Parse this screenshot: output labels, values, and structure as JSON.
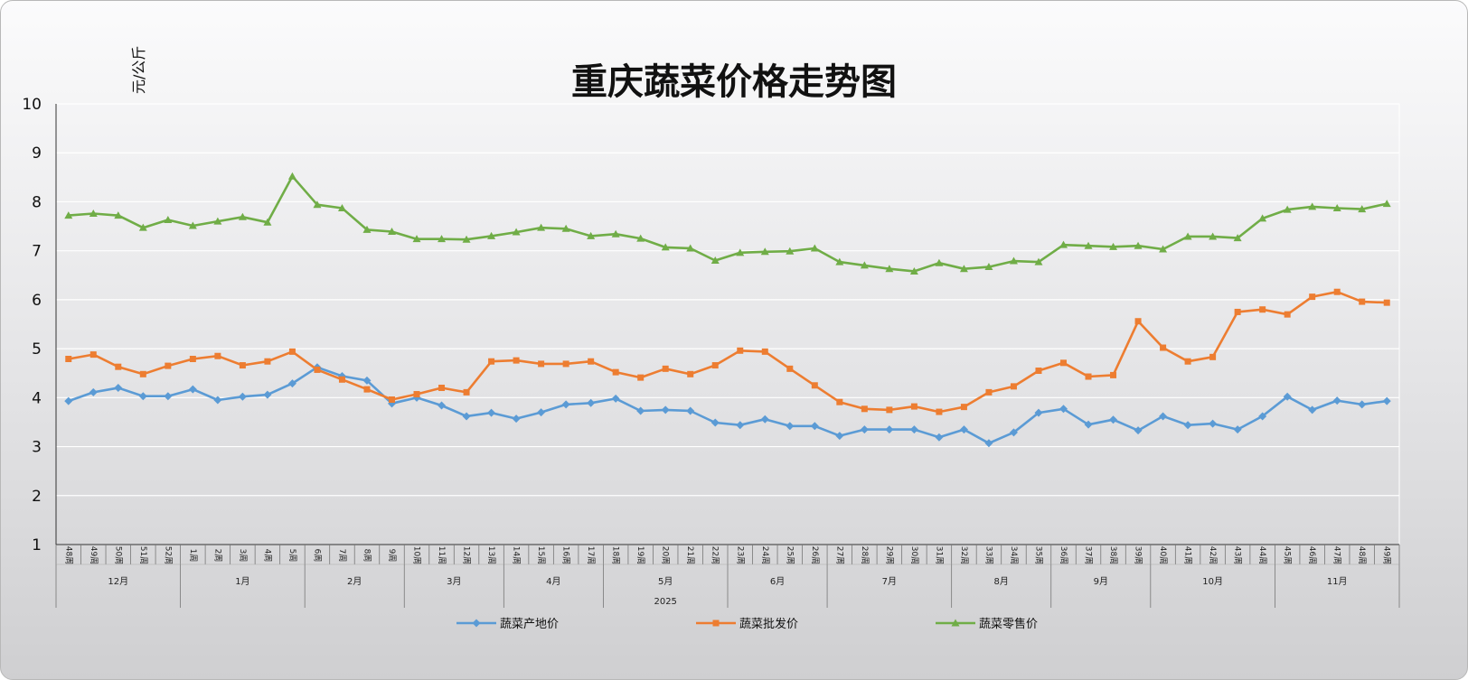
{
  "chart_data": {
    "type": "line",
    "title": "重庆蔬菜价格走势图",
    "ylabel": "元/公斤",
    "xlabel": "",
    "ylim": [
      1,
      10
    ],
    "yticks": [
      1,
      2,
      3,
      4,
      5,
      6,
      7,
      8,
      9,
      10
    ],
    "grid": true,
    "legend": "bottom",
    "categories": [
      "48周",
      "49周",
      "50周",
      "51周",
      "52周",
      "1周",
      "2周",
      "3周",
      "4周",
      "5周",
      "6周",
      "7周",
      "8周",
      "9周",
      "10周",
      "11周",
      "12周",
      "13周",
      "14周",
      "15周",
      "16周",
      "17周",
      "18周",
      "19周",
      "20周",
      "21周",
      "22周",
      "23周",
      "24周",
      "25周",
      "26周",
      "27周",
      "28周",
      "29周",
      "30周",
      "31周",
      "32周",
      "33周",
      "34周",
      "35周",
      "36周",
      "37周",
      "38周",
      "39周",
      "40周",
      "41周",
      "42周",
      "43周",
      "44周",
      "45周",
      "46周",
      "47周",
      "48周",
      "49周"
    ],
    "months": [
      {
        "label": "12月",
        "count": 5
      },
      {
        "label": "1月",
        "count": 5
      },
      {
        "label": "2月",
        "count": 4
      },
      {
        "label": "3月",
        "count": 4
      },
      {
        "label": "4月",
        "count": 4
      },
      {
        "label": "5月",
        "count": 5
      },
      {
        "label": "6月",
        "count": 4
      },
      {
        "label": "7月",
        "count": 5
      },
      {
        "label": "8月",
        "count": 4
      },
      {
        "label": "9月",
        "count": 4
      },
      {
        "label": "10月",
        "count": 5
      },
      {
        "label": "11月",
        "count": 5
      }
    ],
    "years": [
      {
        "label": "2025",
        "count": 49
      }
    ],
    "series": [
      {
        "name": "蔬菜产地价",
        "color": "#5b9bd5",
        "marker": "diamond",
        "values": [
          3.93,
          4.11,
          4.2,
          4.03,
          4.03,
          4.17,
          3.95,
          4.02,
          4.06,
          4.29,
          4.62,
          4.44,
          4.35,
          3.88,
          4.0,
          3.84,
          3.62,
          3.69,
          3.57,
          3.7,
          3.86,
          3.89,
          3.98,
          3.73,
          3.75,
          3.73,
          3.49,
          3.44,
          3.56,
          3.42,
          3.42,
          3.22,
          3.35,
          3.35,
          3.35,
          3.19,
          3.35,
          3.07,
          3.29,
          3.69,
          3.77,
          3.45,
          3.55,
          3.33,
          3.62,
          3.44,
          3.47,
          3.35,
          3.62,
          4.02,
          3.75,
          3.94,
          3.86,
          3.93
        ]
      },
      {
        "name": "蔬菜批发价",
        "color": "#ed7d31",
        "marker": "square",
        "values": [
          4.79,
          4.88,
          4.63,
          4.48,
          4.65,
          4.79,
          4.85,
          4.66,
          4.74,
          4.94,
          4.57,
          4.37,
          4.17,
          3.96,
          4.07,
          4.2,
          4.11,
          4.74,
          4.76,
          4.69,
          4.69,
          4.74,
          4.52,
          4.41,
          4.59,
          4.48,
          4.66,
          4.96,
          4.94,
          4.59,
          4.25,
          3.91,
          3.77,
          3.75,
          3.82,
          3.71,
          3.81,
          4.11,
          4.23,
          4.55,
          4.71,
          4.43,
          4.46,
          5.56,
          5.02,
          4.74,
          4.83,
          5.75,
          5.8,
          5.7,
          6.06,
          6.16,
          5.96,
          5.94
        ]
      },
      {
        "name": "蔬菜零售价",
        "color": "#70ad47",
        "marker": "triangle",
        "values": [
          7.72,
          7.76,
          7.72,
          7.47,
          7.63,
          7.51,
          7.6,
          7.69,
          7.58,
          8.52,
          7.94,
          7.87,
          7.43,
          7.39,
          7.24,
          7.24,
          7.23,
          7.3,
          7.38,
          7.47,
          7.45,
          7.3,
          7.34,
          7.25,
          7.07,
          7.05,
          6.8,
          6.96,
          6.98,
          6.99,
          7.05,
          6.77,
          6.7,
          6.63,
          6.58,
          6.75,
          6.63,
          6.67,
          6.79,
          6.77,
          7.12,
          7.1,
          7.08,
          7.1,
          7.03,
          7.29,
          7.29,
          7.26,
          7.66,
          7.84,
          7.9,
          7.87,
          7.85,
          7.96
        ]
      }
    ]
  }
}
